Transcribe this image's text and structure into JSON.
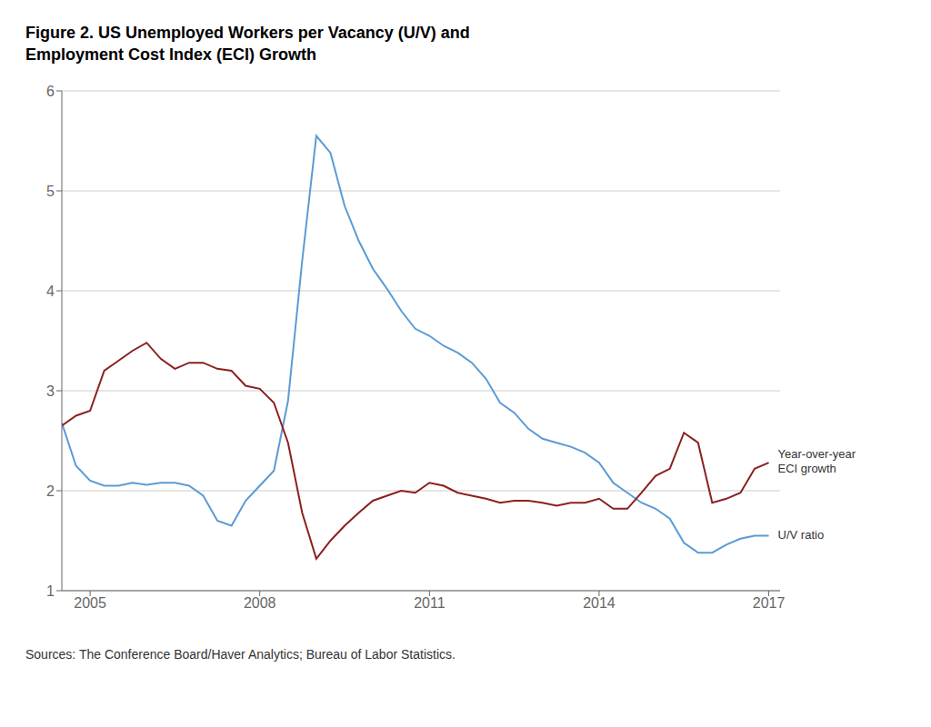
{
  "chart_data": {
    "type": "line",
    "title": "Figure 2. US Unemployed Workers per Vacancy (U/V) and\nEmployment Cost Index (ECI) Growth",
    "source": "Sources: The Conference Board/Haver Analytics; Bureau of Labor Statistics.",
    "x": [
      2004.5,
      2004.75,
      2005.0,
      2005.25,
      2005.5,
      2005.75,
      2006.0,
      2006.25,
      2006.5,
      2006.75,
      2007.0,
      2007.25,
      2007.5,
      2007.75,
      2008.0,
      2008.25,
      2008.5,
      2008.75,
      2009.0,
      2009.25,
      2009.5,
      2009.75,
      2010.0,
      2010.25,
      2010.5,
      2010.75,
      2011.0,
      2011.25,
      2011.5,
      2011.75,
      2012.0,
      2012.25,
      2012.5,
      2012.75,
      2013.0,
      2013.25,
      2013.5,
      2013.75,
      2014.0,
      2014.25,
      2014.5,
      2014.75,
      2015.0,
      2015.25,
      2015.5,
      2015.75,
      2016.0,
      2016.25,
      2016.5,
      2016.75,
      2017.0
    ],
    "series": [
      {
        "name": "U/V ratio",
        "color": "#5B9BD5",
        "values": [
          2.68,
          2.25,
          2.1,
          2.05,
          2.05,
          2.08,
          2.06,
          2.08,
          2.08,
          2.05,
          1.95,
          1.7,
          1.65,
          1.9,
          2.05,
          2.2,
          2.9,
          4.3,
          5.55,
          5.38,
          4.85,
          4.5,
          4.22,
          4.02,
          3.8,
          3.62,
          3.55,
          3.45,
          3.38,
          3.28,
          3.12,
          2.88,
          2.78,
          2.62,
          2.52,
          2.48,
          2.44,
          2.38,
          2.28,
          2.08,
          1.98,
          1.88,
          1.82,
          1.72,
          1.48,
          1.38,
          1.38,
          1.46,
          1.52,
          1.55,
          1.55
        ]
      },
      {
        "name": "Year-over-year\nECI growth",
        "color": "#8B2020",
        "values": [
          2.65,
          2.75,
          2.8,
          3.2,
          3.3,
          3.4,
          3.48,
          3.32,
          3.22,
          3.28,
          3.28,
          3.22,
          3.2,
          3.05,
          3.02,
          2.88,
          2.48,
          1.78,
          1.32,
          1.5,
          1.65,
          1.78,
          1.9,
          1.95,
          2.0,
          1.98,
          2.08,
          2.05,
          1.98,
          1.95,
          1.92,
          1.88,
          1.9,
          1.9,
          1.88,
          1.85,
          1.88,
          1.88,
          1.92,
          1.82,
          1.82,
          1.98,
          2.15,
          2.22,
          2.58,
          2.48,
          1.88,
          1.92,
          1.98,
          2.22,
          2.28
        ]
      }
    ],
    "xlim": [
      2004.5,
      2017.2
    ],
    "xticks": [
      2005,
      2008,
      2011,
      2014,
      2017
    ],
    "ylim": [
      1,
      6
    ],
    "yticks": [
      1,
      2,
      3,
      4,
      5,
      6
    ],
    "grid": true
  }
}
